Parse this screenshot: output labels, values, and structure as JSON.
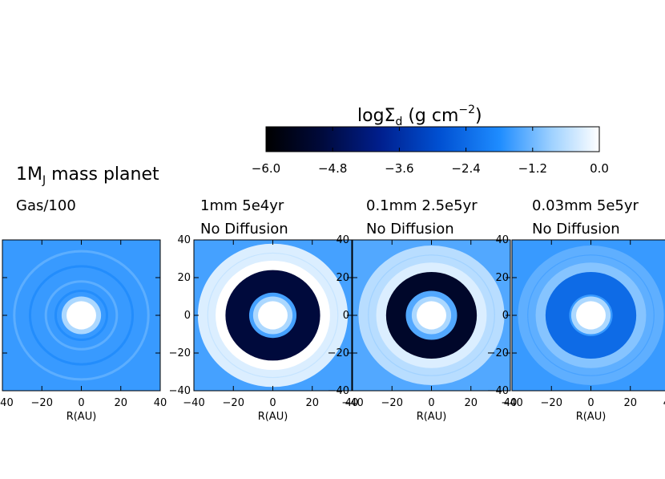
{
  "figure": {
    "title": "1M",
    "title_subscript": "J",
    "title_suffix": " mass planet"
  },
  "colorbar": {
    "label_prefix": "logΣ",
    "label_subscript": "d",
    "label_units": " (g cm",
    "label_exponent": "−2",
    "label_close": ")",
    "min": -6.0,
    "max": 0.0,
    "ticks": [
      "−6.0",
      "−4.8",
      "−3.6",
      "−2.4",
      "−1.2",
      "0.0"
    ],
    "tick_values": [
      -6.0,
      -4.8,
      -3.6,
      -2.4,
      -1.2,
      0.0
    ],
    "colors": [
      "#000000",
      "#000a3c",
      "#001e8c",
      "#0050d2",
      "#1e8cff",
      "#a0d2ff",
      "#ffffff"
    ]
  },
  "chart_data": {
    "type": "heatmap",
    "title": "1MJ mass planet",
    "xlabel": "R(AU)",
    "xlim": [
      -40,
      40
    ],
    "ylim": [
      -40,
      40
    ],
    "x_ticks": [
      "−40",
      "−20",
      "0",
      "20",
      "40"
    ],
    "y_ticks": [
      "−40",
      "−20",
      "0",
      "20",
      "40"
    ],
    "panels": [
      {
        "label_line1": "Gas/100",
        "label_line2": "",
        "gap_inner_au": 0,
        "gap_outer_au": 0,
        "gap_level": -2.0,
        "background_level": -1.6,
        "ring_level": -1.4
      },
      {
        "label_line1": "1mm   5e4yr",
        "label_line2": "No Diffusion",
        "gap_inner_au": 12,
        "gap_outer_au": 24,
        "gap_level": -5.0,
        "background_level": -1.5,
        "ring_level": -0.3
      },
      {
        "label_line1": "0.1mm   2.5e5yr",
        "label_line2": "No Diffusion",
        "gap_inner_au": 13,
        "gap_outer_au": 23,
        "gap_level": -5.3,
        "background_level": -1.4,
        "ring_level": -0.6
      },
      {
        "label_line1": "0.03mm   5e5yr",
        "label_line2": "No Diffusion",
        "gap_inner_au": 11,
        "gap_outer_au": 23,
        "gap_level": -2.4,
        "background_level": -1.6,
        "ring_level": -1.3
      }
    ]
  }
}
